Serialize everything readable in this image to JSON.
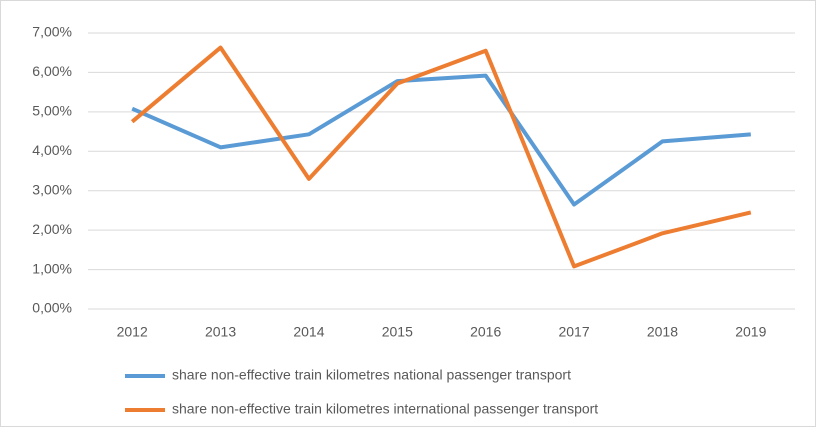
{
  "chart_data": {
    "type": "line",
    "categories": [
      "2012",
      "2013",
      "2014",
      "2015",
      "2016",
      "2017",
      "2018",
      "2019"
    ],
    "series": [
      {
        "name": "share non-effective train kilometres national passenger transport",
        "color": "#5b9bd5",
        "values": [
          5.08,
          4.1,
          4.43,
          5.78,
          5.92,
          2.65,
          4.25,
          4.43
        ]
      },
      {
        "name": "share non-effective train kilometres international passenger transport",
        "color": "#ed7d31",
        "values": [
          4.75,
          6.63,
          3.3,
          5.72,
          6.55,
          1.08,
          1.92,
          2.45
        ]
      }
    ],
    "ylim": [
      0,
      7
    ],
    "yticks": [
      {
        "value": 0,
        "label": "0,00%"
      },
      {
        "value": 1,
        "label": "1,00%"
      },
      {
        "value": 2,
        "label": "2,00%"
      },
      {
        "value": 3,
        "label": "3,00%"
      },
      {
        "value": 4,
        "label": "4,00%"
      },
      {
        "value": 5,
        "label": "5,00%"
      },
      {
        "value": 6,
        "label": "6,00%"
      },
      {
        "value": 7,
        "label": "7,00%"
      }
    ],
    "grid": true,
    "legend": "bottom"
  }
}
